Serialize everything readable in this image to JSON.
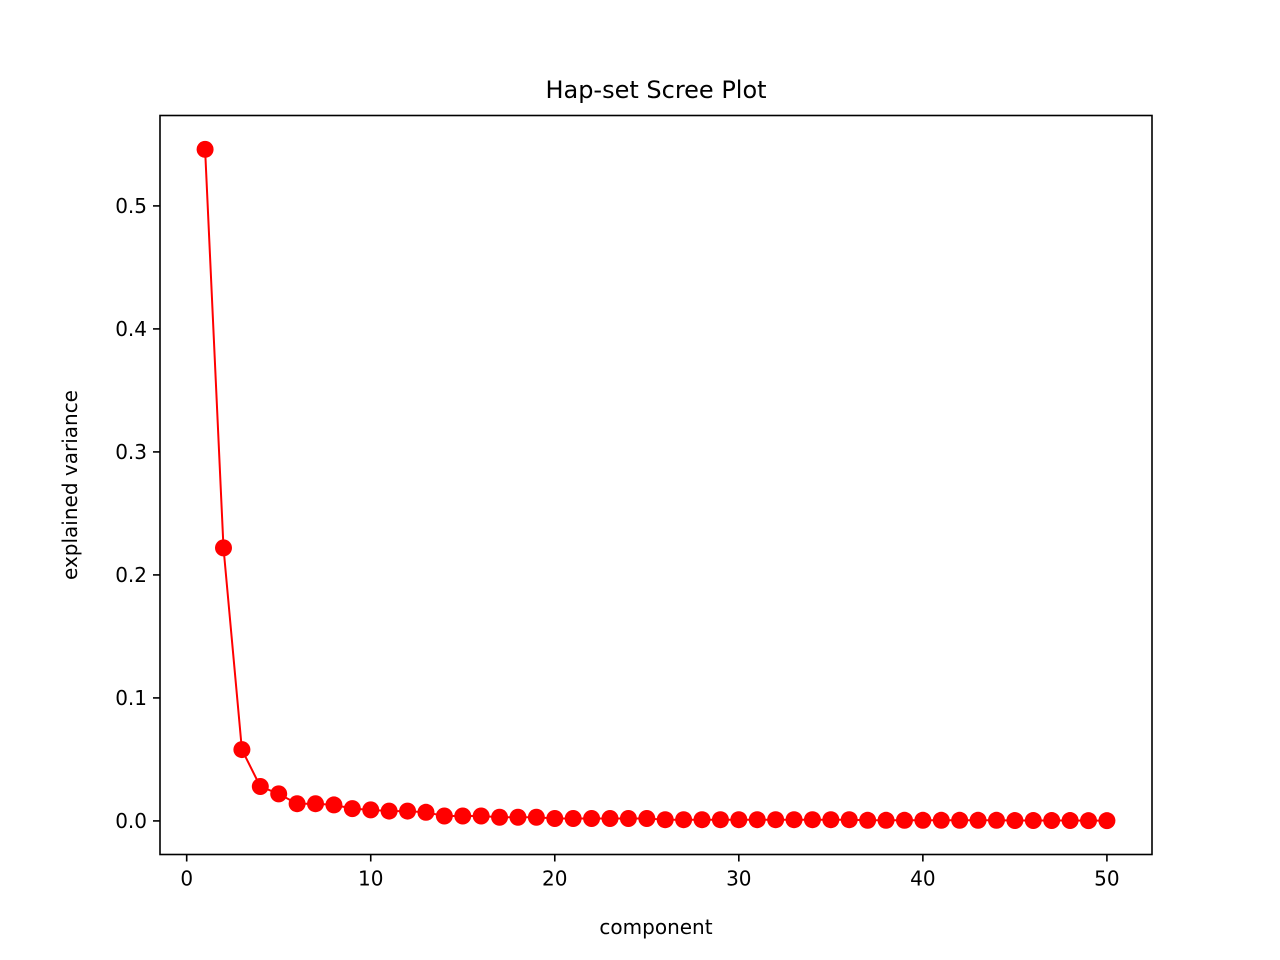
{
  "chart_data": {
    "type": "line",
    "title": "Hap-set Scree Plot",
    "xlabel": "component",
    "ylabel": "explained variance",
    "xlim": [
      -1.45,
      52.45
    ],
    "ylim": [
      -0.0273,
      0.5735
    ],
    "x_ticks": [
      0,
      10,
      20,
      30,
      40,
      50
    ],
    "x_tick_labels": [
      "0",
      "10",
      "20",
      "30",
      "40",
      "50"
    ],
    "y_ticks": [
      0.0,
      0.1,
      0.2,
      0.3,
      0.4,
      0.5
    ],
    "y_tick_labels": [
      "0.0",
      "0.1",
      "0.2",
      "0.3",
      "0.4",
      "0.5"
    ],
    "grid": false,
    "legend": "none",
    "marker": "circle",
    "color": "#ff0000",
    "series": [
      {
        "x": [
          1,
          2,
          3,
          4,
          5,
          6,
          7,
          8,
          9,
          10,
          11,
          12,
          13,
          14,
          15,
          16,
          17,
          18,
          19,
          20,
          21,
          22,
          23,
          24,
          25,
          26,
          27,
          28,
          29,
          30,
          31,
          32,
          33,
          34,
          35,
          36,
          37,
          38,
          39,
          40,
          41,
          42,
          43,
          44,
          45,
          46,
          47,
          48,
          49,
          50
        ],
        "values": [
          0.546,
          0.222,
          0.058,
          0.028,
          0.022,
          0.014,
          0.014,
          0.013,
          0.01,
          0.009,
          0.008,
          0.008,
          0.007,
          0.004,
          0.004,
          0.004,
          0.003,
          0.003,
          0.003,
          0.002,
          0.002,
          0.002,
          0.002,
          0.002,
          0.002,
          0.001,
          0.001,
          0.001,
          0.001,
          0.001,
          0.001,
          0.001,
          0.001,
          0.001,
          0.001,
          0.001,
          0.0005,
          0.0005,
          0.0005,
          0.0005,
          0.0005,
          0.0005,
          0.0005,
          0.0005,
          0.0003,
          0.0003,
          0.0003,
          0.0003,
          0.0002,
          0.0002
        ]
      }
    ]
  }
}
